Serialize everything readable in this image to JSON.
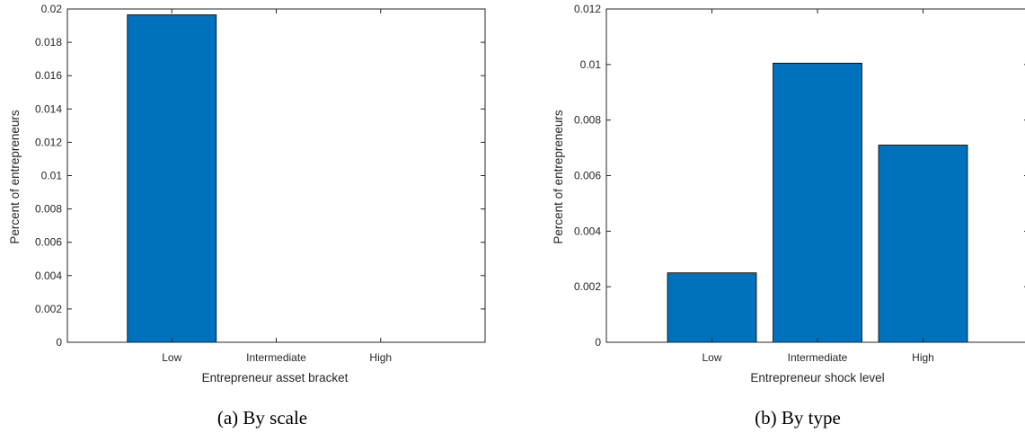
{
  "colors": {
    "bar": "#0072BD",
    "axis": "#262626"
  },
  "chart_data": [
    {
      "type": "bar",
      "caption": "(a) By scale",
      "categories": [
        "Low",
        "Intermediate",
        "High"
      ],
      "values": [
        0.01965,
        0,
        0
      ],
      "ylim": [
        0,
        0.02
      ],
      "yticks": [
        0,
        0.002,
        0.004,
        0.006,
        0.008,
        0.01,
        0.012,
        0.014,
        0.016,
        0.018,
        0.02
      ],
      "ytick_labels": [
        "0",
        "0.002",
        "0.004",
        "0.006",
        "0.008",
        "0.01",
        "0.012",
        "0.014",
        "0.016",
        "0.018",
        "0.02"
      ],
      "xlabel": "Entrepreneur asset bracket",
      "ylabel": "Percent of entrepreneurs",
      "grid": false
    },
    {
      "type": "bar",
      "caption": "(b) By type",
      "categories": [
        "Low",
        "Intermediate",
        "High"
      ],
      "values": [
        0.0025,
        0.01005,
        0.0071
      ],
      "ylim": [
        0,
        0.012
      ],
      "yticks": [
        0,
        0.002,
        0.004,
        0.006,
        0.008,
        0.01,
        0.012
      ],
      "ytick_labels": [
        "0",
        "0.002",
        "0.004",
        "0.006",
        "0.008",
        "0.01",
        "0.012"
      ],
      "xlabel": "Entrepreneur shock level",
      "ylabel": "Percent of entrepreneurs",
      "grid": false
    }
  ]
}
